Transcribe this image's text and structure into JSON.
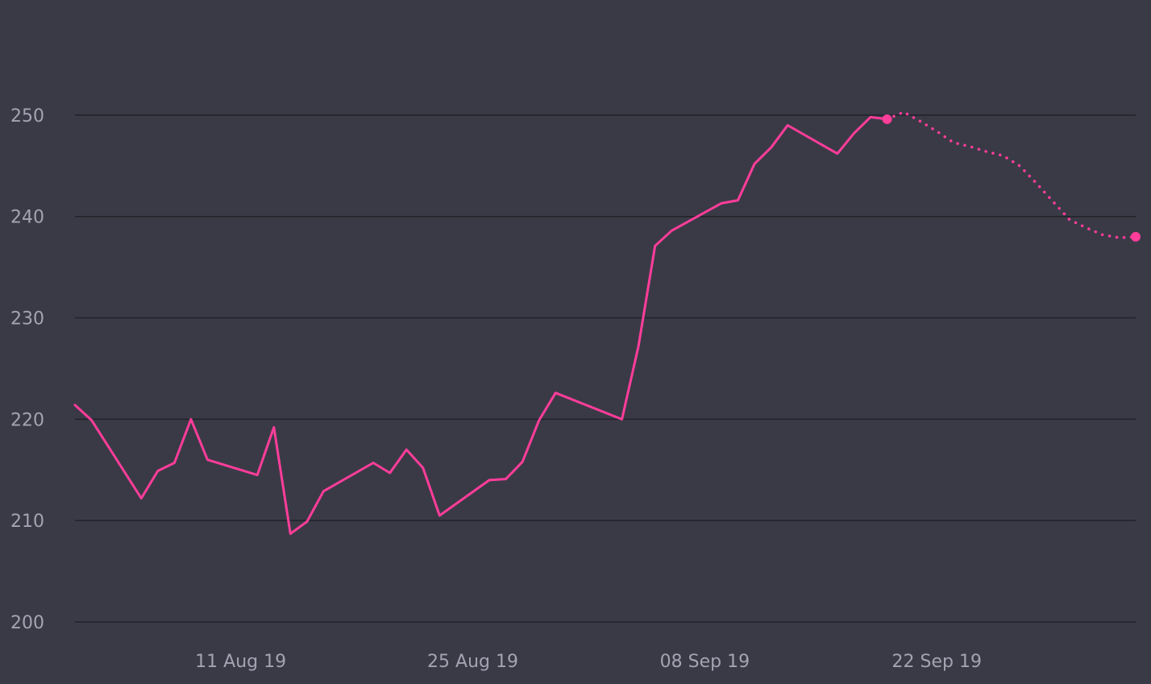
{
  "chart_data": {
    "type": "line",
    "title": "",
    "xlabel": "",
    "ylabel": "",
    "ylim": [
      200,
      255
    ],
    "xlim": [
      "2019-08-01",
      "2019-10-04"
    ],
    "y_ticks": [
      {
        "value": 200,
        "label": "200"
      },
      {
        "value": 210,
        "label": "210"
      },
      {
        "value": 220,
        "label": "220"
      },
      {
        "value": 230,
        "label": "230"
      },
      {
        "value": 240,
        "label": "240"
      },
      {
        "value": 250,
        "label": "250"
      }
    ],
    "x_ticks": [
      {
        "date": "2019-08-11",
        "label": "11 Aug 19"
      },
      {
        "date": "2019-08-25",
        "label": "25 Aug 19"
      },
      {
        "date": "2019-09-08",
        "label": "08 Sep 19"
      },
      {
        "date": "2019-09-22",
        "label": "22 Sep 19"
      }
    ],
    "grid": true,
    "legend": "none",
    "colors": {
      "background": "#3a3a46",
      "grid": "#22222b",
      "series": "#ff3d9a",
      "tick_text": "#a3a3b3"
    },
    "series": [
      {
        "style": "solid",
        "points": [
          {
            "x": "2019-08-01",
            "y": 221.4
          },
          {
            "x": "2019-08-02",
            "y": 219.9
          },
          {
            "x": "2019-08-05",
            "y": 212.2
          },
          {
            "x": "2019-08-06",
            "y": 214.9
          },
          {
            "x": "2019-08-07",
            "y": 215.7
          },
          {
            "x": "2019-08-08",
            "y": 220.0
          },
          {
            "x": "2019-08-09",
            "y": 216.0
          },
          {
            "x": "2019-08-12",
            "y": 214.5
          },
          {
            "x": "2019-08-13",
            "y": 219.2
          },
          {
            "x": "2019-08-14",
            "y": 208.7
          },
          {
            "x": "2019-08-15",
            "y": 209.9
          },
          {
            "x": "2019-08-16",
            "y": 212.9
          },
          {
            "x": "2019-08-19",
            "y": 215.7
          },
          {
            "x": "2019-08-20",
            "y": 214.7
          },
          {
            "x": "2019-08-21",
            "y": 217.0
          },
          {
            "x": "2019-08-22",
            "y": 215.2
          },
          {
            "x": "2019-08-23",
            "y": 210.5
          },
          {
            "x": "2019-08-26",
            "y": 214.0
          },
          {
            "x": "2019-08-27",
            "y": 214.1
          },
          {
            "x": "2019-08-28",
            "y": 215.8
          },
          {
            "x": "2019-08-29",
            "y": 219.9
          },
          {
            "x": "2019-08-30",
            "y": 222.6
          },
          {
            "x": "2019-09-03",
            "y": 220.0
          },
          {
            "x": "2019-09-04",
            "y": 227.2
          },
          {
            "x": "2019-09-05",
            "y": 237.1
          },
          {
            "x": "2019-09-06",
            "y": 238.6
          },
          {
            "x": "2019-09-09",
            "y": 241.3
          },
          {
            "x": "2019-09-10",
            "y": 241.6
          },
          {
            "x": "2019-09-11",
            "y": 245.2
          },
          {
            "x": "2019-09-12",
            "y": 246.8
          },
          {
            "x": "2019-09-13",
            "y": 249.0
          },
          {
            "x": "2019-09-16",
            "y": 246.2
          },
          {
            "x": "2019-09-17",
            "y": 248.2
          },
          {
            "x": "2019-09-18",
            "y": 249.8
          },
          {
            "x": "2019-09-19",
            "y": 249.6
          }
        ]
      },
      {
        "style": "dotted",
        "points": [
          {
            "x": "2019-09-19",
            "y": 249.6
          },
          {
            "x": "2019-09-20",
            "y": 250.3
          },
          {
            "x": "2019-09-21",
            "y": 249.4
          },
          {
            "x": "2019-09-22",
            "y": 248.4
          },
          {
            "x": "2019-09-23",
            "y": 247.3
          },
          {
            "x": "2019-09-24",
            "y": 246.9
          },
          {
            "x": "2019-09-25",
            "y": 246.4
          },
          {
            "x": "2019-09-26",
            "y": 246.0
          },
          {
            "x": "2019-09-27",
            "y": 245.0
          },
          {
            "x": "2019-09-28",
            "y": 243.3
          },
          {
            "x": "2019-09-29",
            "y": 241.5
          },
          {
            "x": "2019-09-30",
            "y": 239.7
          },
          {
            "x": "2019-10-01",
            "y": 238.9
          },
          {
            "x": "2019-10-02",
            "y": 238.2
          },
          {
            "x": "2019-10-03",
            "y": 237.9
          },
          {
            "x": "2019-10-04",
            "y": 238.0
          }
        ]
      }
    ],
    "markers": [
      {
        "x": "2019-09-19",
        "y": 249.6
      },
      {
        "x": "2019-10-04",
        "y": 238.0
      }
    ]
  }
}
